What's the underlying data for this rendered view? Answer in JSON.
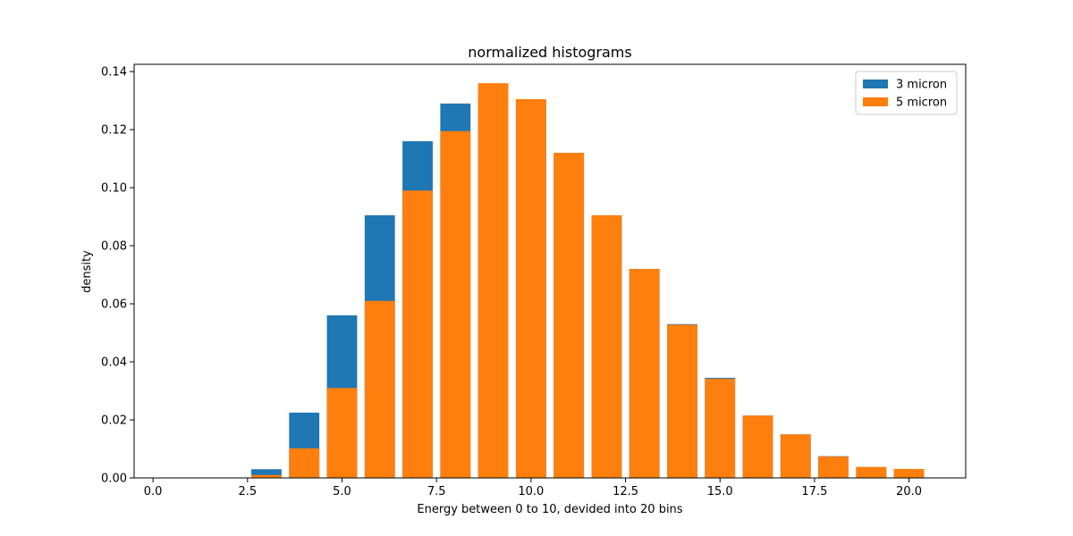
{
  "chart_data": {
    "type": "bar",
    "title": "normalized histograms",
    "xlabel": "Energy between 0 to 10, devided into 20 bins",
    "ylabel": "density",
    "xlim": [
      -0.5,
      21.5
    ],
    "ylim": [
      0,
      0.1425
    ],
    "xticks": [
      0.0,
      2.5,
      5.0,
      7.5,
      10.0,
      12.5,
      15.0,
      17.5,
      20.0
    ],
    "xtick_labels": [
      "0.0",
      "2.5",
      "5.0",
      "7.5",
      "10.0",
      "12.5",
      "15.0",
      "17.5",
      "20.0"
    ],
    "yticks": [
      0.0,
      0.02,
      0.04,
      0.06,
      0.08,
      0.1,
      0.12,
      0.14
    ],
    "ytick_labels": [
      "0.00",
      "0.02",
      "0.04",
      "0.06",
      "0.08",
      "0.10",
      "0.12",
      "0.14"
    ],
    "bar_width": 0.8,
    "x": [
      0,
      1,
      2,
      3,
      4,
      5,
      6,
      7,
      8,
      9,
      10,
      11,
      12,
      13,
      14,
      15,
      16,
      17,
      18,
      19,
      20
    ],
    "legend_position": "top-right",
    "grid": false,
    "series": [
      {
        "name": "3 micron",
        "color": "#1f77b4",
        "values": [
          0,
          0,
          0,
          0.003,
          0.0225,
          0.056,
          0.0905,
          0.116,
          0.129,
          0.133,
          0.13,
          0.112,
          0.09,
          0.072,
          0.053,
          0.0345,
          0.0215,
          0.015,
          0.0075,
          0.0035,
          0.003
        ]
      },
      {
        "name": "5 micron",
        "color": "#ff7f0e",
        "values": [
          0,
          0,
          0,
          0.001,
          0.0102,
          0.031,
          0.061,
          0.099,
          0.1195,
          0.136,
          0.1305,
          0.112,
          0.0905,
          0.072,
          0.0528,
          0.0342,
          0.0215,
          0.015,
          0.0074,
          0.0038,
          0.0031
        ]
      }
    ]
  }
}
